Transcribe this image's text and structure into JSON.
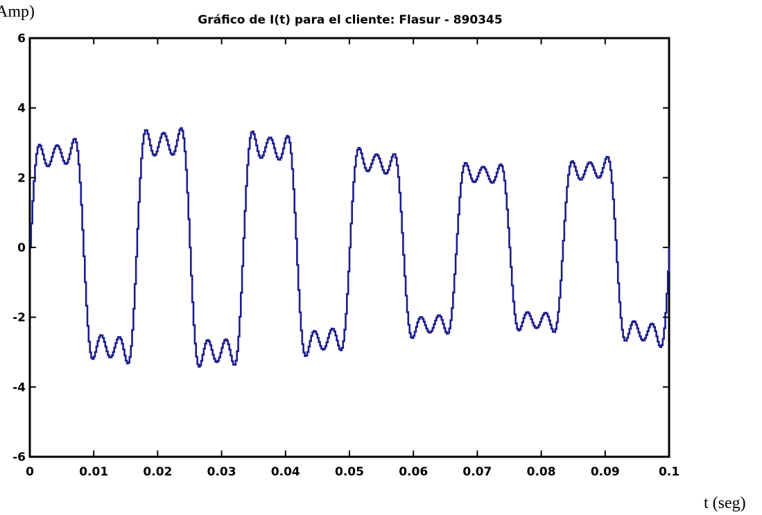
{
  "chart_data": {
    "type": "line",
    "title": "Gráfico de I(t) para el cliente: Flasur - 890345",
    "xlabel": "t (seg)",
    "ylabel": "Amp)",
    "xlim": [
      0,
      0.1
    ],
    "ylim": [
      -6,
      6
    ],
    "xticks": [
      "0",
      "0.01",
      "0.02",
      "0.03",
      "0.04",
      "0.05",
      "0.06",
      "0.07",
      "0.08",
      "0.09",
      "0.1"
    ],
    "yticks": [
      "6",
      "4",
      "2",
      "0",
      "-2",
      "-4",
      "-6"
    ],
    "grid": false,
    "line_color": "#1c1c8c",
    "signal": {
      "sample_period": 0.0002,
      "fundamental_hz": 60,
      "components": [
        {
          "harmonic": 1,
          "amplitude": 3.2
        },
        {
          "harmonic": 3,
          "amplitude": 1.0
        },
        {
          "harmonic": 5,
          "amplitude": 0.6
        }
      ],
      "modulation_amplitude": 0.9,
      "modulation_hz": 10
    }
  }
}
